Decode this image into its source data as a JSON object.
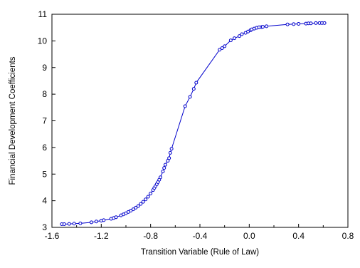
{
  "chart_data": {
    "type": "scatter",
    "xlabel": "Transition Variable (Rule of Law)",
    "ylabel": "Financial Development Coefficients",
    "xlim": [
      -1.6,
      0.8
    ],
    "ylim": [
      3,
      11
    ],
    "xticks": [
      "-1.6",
      "-1.2",
      "-0.8",
      "-0.4",
      "0.0",
      "0.4",
      "0.8"
    ],
    "yticks": [
      "3",
      "4",
      "5",
      "6",
      "7",
      "8",
      "9",
      "10",
      "11"
    ],
    "grid": false,
    "legend": "none",
    "series": [
      {
        "color": "#0000cc",
        "marker": "hollow-circle",
        "connected": true,
        "points": [
          [
            -1.52,
            3.12
          ],
          [
            -1.5,
            3.12
          ],
          [
            -1.46,
            3.13
          ],
          [
            -1.42,
            3.14
          ],
          [
            -1.37,
            3.15
          ],
          [
            -1.28,
            3.19
          ],
          [
            -1.24,
            3.22
          ],
          [
            -1.2,
            3.25
          ],
          [
            -1.18,
            3.27
          ],
          [
            -1.12,
            3.32
          ],
          [
            -1.1,
            3.35
          ],
          [
            -1.08,
            3.38
          ],
          [
            -1.04,
            3.45
          ],
          [
            -1.02,
            3.49
          ],
          [
            -1.0,
            3.53
          ],
          [
            -0.98,
            3.58
          ],
          [
            -0.96,
            3.63
          ],
          [
            -0.94,
            3.68
          ],
          [
            -0.92,
            3.74
          ],
          [
            -0.9,
            3.8
          ],
          [
            -0.88,
            3.88
          ],
          [
            -0.86,
            3.96
          ],
          [
            -0.84,
            4.05
          ],
          [
            -0.82,
            4.15
          ],
          [
            -0.8,
            4.27
          ],
          [
            -0.78,
            4.4
          ],
          [
            -0.77,
            4.48
          ],
          [
            -0.76,
            4.55
          ],
          [
            -0.75,
            4.62
          ],
          [
            -0.74,
            4.7
          ],
          [
            -0.73,
            4.79
          ],
          [
            -0.72,
            4.88
          ],
          [
            -0.7,
            5.1
          ],
          [
            -0.69,
            5.23
          ],
          [
            -0.68,
            5.35
          ],
          [
            -0.66,
            5.5
          ],
          [
            -0.65,
            5.6
          ],
          [
            -0.64,
            5.8
          ],
          [
            -0.63,
            5.95
          ],
          [
            -0.52,
            7.55
          ],
          [
            -0.48,
            7.9
          ],
          [
            -0.45,
            8.2
          ],
          [
            -0.43,
            8.43
          ],
          [
            -0.24,
            9.67
          ],
          [
            -0.22,
            9.73
          ],
          [
            -0.2,
            9.8
          ],
          [
            -0.15,
            10.02
          ],
          [
            -0.12,
            10.1
          ],
          [
            -0.08,
            10.18
          ],
          [
            -0.06,
            10.25
          ],
          [
            -0.03,
            10.3
          ],
          [
            -0.01,
            10.35
          ],
          [
            0.01,
            10.4
          ],
          [
            0.02,
            10.43
          ],
          [
            0.04,
            10.46
          ],
          [
            0.06,
            10.49
          ],
          [
            0.08,
            10.51
          ],
          [
            0.1,
            10.52
          ],
          [
            0.11,
            10.53
          ],
          [
            0.14,
            10.55
          ],
          [
            0.31,
            10.62
          ],
          [
            0.36,
            10.63
          ],
          [
            0.4,
            10.64
          ],
          [
            0.46,
            10.65
          ],
          [
            0.48,
            10.66
          ],
          [
            0.5,
            10.66
          ],
          [
            0.54,
            10.67
          ],
          [
            0.57,
            10.67
          ],
          [
            0.59,
            10.67
          ],
          [
            0.61,
            10.67
          ]
        ]
      }
    ]
  }
}
